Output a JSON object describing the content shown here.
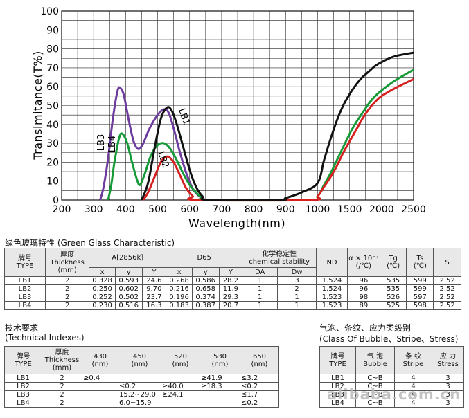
{
  "chart_data": {
    "type": "line",
    "xlabel": "Wavelength(nm)",
    "ylabel": "Transimitance(T%)",
    "xlim": [
      200,
      2500
    ],
    "ylim": [
      0,
      100
    ],
    "x_ticks": [
      "200",
      "300",
      "400",
      "500",
      "600",
      "700",
      "800",
      "900",
      "1000",
      "1500",
      "2000",
      "2500"
    ],
    "y_ticks": [
      "0",
      "10",
      "20",
      "30",
      "40",
      "50",
      "60",
      "70",
      "80",
      "90",
      "100"
    ],
    "grid": true,
    "series": [
      {
        "name": "LB1",
        "color": "#111111",
        "points": [
          [
            450,
            0
          ],
          [
            470,
            9
          ],
          [
            490,
            27
          ],
          [
            510,
            43
          ],
          [
            530,
            49
          ],
          [
            545,
            47
          ],
          [
            560,
            40
          ],
          [
            580,
            28
          ],
          [
            600,
            16
          ],
          [
            620,
            7
          ],
          [
            640,
            2
          ],
          [
            660,
            0
          ],
          [
            880,
            0
          ],
          [
            900,
            1
          ],
          [
            950,
            4
          ],
          [
            1000,
            9
          ],
          [
            1100,
            21
          ],
          [
            1200,
            32
          ],
          [
            1300,
            42
          ],
          [
            1400,
            50
          ],
          [
            1500,
            56
          ],
          [
            1600,
            61
          ],
          [
            1700,
            65
          ],
          [
            1800,
            68
          ],
          [
            1900,
            71
          ],
          [
            2000,
            73
          ],
          [
            2200,
            76
          ],
          [
            2500,
            78
          ]
        ]
      },
      {
        "name": "LB2",
        "color": "#d62020",
        "points": [
          [
            455,
            0
          ],
          [
            470,
            4
          ],
          [
            490,
            12
          ],
          [
            510,
            20
          ],
          [
            530,
            23
          ],
          [
            550,
            20
          ],
          [
            570,
            13
          ],
          [
            590,
            6
          ],
          [
            610,
            2
          ],
          [
            625,
            0
          ],
          [
            975,
            0
          ],
          [
            1000,
            2
          ],
          [
            1100,
            7
          ],
          [
            1200,
            12
          ],
          [
            1300,
            18
          ],
          [
            1400,
            25
          ],
          [
            1500,
            31
          ],
          [
            1600,
            37
          ],
          [
            1700,
            43
          ],
          [
            1800,
            48
          ],
          [
            1900,
            52
          ],
          [
            2000,
            55
          ],
          [
            2200,
            59
          ],
          [
            2500,
            64
          ]
        ]
      },
      {
        "name": "LB3",
        "color": "#6e3b9e",
        "points": [
          [
            320,
            0
          ],
          [
            330,
            6
          ],
          [
            345,
            22
          ],
          [
            360,
            43
          ],
          [
            375,
            58
          ],
          [
            385,
            59
          ],
          [
            395,
            55
          ],
          [
            410,
            42
          ],
          [
            425,
            31
          ],
          [
            440,
            27
          ],
          [
            455,
            30
          ],
          [
            475,
            38
          ],
          [
            500,
            45
          ],
          [
            520,
            48
          ],
          [
            535,
            46
          ],
          [
            550,
            38
          ],
          [
            570,
            25
          ],
          [
            590,
            14
          ],
          [
            610,
            6
          ],
          [
            630,
            2
          ],
          [
            650,
            0
          ]
        ]
      },
      {
        "name": "LB4",
        "color": "#169a38",
        "points": [
          [
            345,
            0
          ],
          [
            355,
            8
          ],
          [
            365,
            20
          ],
          [
            380,
            33
          ],
          [
            390,
            35
          ],
          [
            405,
            30
          ],
          [
            420,
            20
          ],
          [
            435,
            11
          ],
          [
            445,
            8
          ],
          [
            460,
            14
          ],
          [
            480,
            24
          ],
          [
            500,
            29
          ],
          [
            520,
            30
          ],
          [
            540,
            27
          ],
          [
            560,
            21
          ],
          [
            580,
            14
          ],
          [
            600,
            8
          ],
          [
            620,
            4
          ],
          [
            640,
            1
          ],
          [
            655,
            0
          ],
          [
            970,
            0
          ],
          [
            1000,
            2
          ],
          [
            1100,
            8
          ],
          [
            1200,
            14
          ],
          [
            1300,
            21
          ],
          [
            1400,
            28
          ],
          [
            1500,
            35
          ],
          [
            1600,
            41
          ],
          [
            1700,
            46
          ],
          [
            1800,
            51
          ],
          [
            1900,
            55
          ],
          [
            2000,
            58
          ],
          [
            2200,
            63
          ],
          [
            2500,
            69
          ]
        ]
      }
    ],
    "curve_labels": [
      "LB1",
      "LB2",
      "LB3",
      "LB4"
    ]
  },
  "table1": {
    "title": "绿色玻璃特性 (Green Glass Characteristic)",
    "header": {
      "brand": "牌号",
      "type": "TYPE",
      "thickness_cn": "厚度",
      "thickness": "Thickness",
      "thickness_unit": "(mm)",
      "a2856": "A[2856k]",
      "d65": "D65",
      "x": "x",
      "y": "y",
      "Y": "Y",
      "chem_cn": "化学稳定性",
      "chem": "chemical stability",
      "da": "DA",
      "dw": "Dw",
      "nd": "ND",
      "alpha": "α × 10⁻⁷",
      "alpha_unit": "(/℃)",
      "tg": "Tg",
      "tg_unit": "(℃)",
      "ts": "Ts",
      "ts_unit": "(℃)",
      "s": "S"
    },
    "rows": [
      [
        "LB1",
        "2",
        "0.328",
        "0.593",
        "24.6",
        "0.268",
        "0.586",
        "28.2",
        "1",
        "3",
        "1.524",
        "96",
        "535",
        "599",
        "2.52"
      ],
      [
        "LB2",
        "2",
        "0.250",
        "0.602",
        "9.70",
        "0.216",
        "0.658",
        "11.9",
        "1",
        "2",
        "1.524",
        "96",
        "535",
        "599",
        "2.52"
      ],
      [
        "LB3",
        "2",
        "0.252",
        "0.502",
        "23.7",
        "0.196",
        "0.374",
        "29.3",
        "1",
        "1",
        "1.523",
        "98",
        "526",
        "597",
        "2.52"
      ],
      [
        "LB4",
        "2",
        "0.230",
        "0.516",
        "16.3",
        "0.183",
        "0.387",
        "20.7",
        "1",
        "1",
        "1.523",
        "89",
        "525",
        "598",
        "2.52"
      ]
    ]
  },
  "table2": {
    "title_cn": "技术要求",
    "title_en": "(Technical Indexes)",
    "header": {
      "brand": "牌号",
      "type": "TYPE",
      "thickness_cn": "厚度",
      "thickness": "Thickness",
      "thickness_unit": "(mm)",
      "w430": "430",
      "w450": "450",
      "w520": "520",
      "w530": "530",
      "w650": "650",
      "nm": "(nm)"
    },
    "rows": [
      [
        "LB1",
        "2",
        "≥0.4",
        "",
        "",
        "≥41.9",
        "≤3.2"
      ],
      [
        "LB2",
        "2",
        "",
        "≤0.2",
        "≥40.0",
        "≥18.3",
        "≤0.2"
      ],
      [
        "LB3",
        "2",
        "",
        "15.2~29.0",
        "≥24.1",
        "",
        "≤1.7"
      ],
      [
        "LB4",
        "2",
        "",
        "6.0~15.9",
        "",
        "",
        "≤0.2"
      ]
    ]
  },
  "table3": {
    "title_cn": "气泡、条纹、应力类级别",
    "title_en": "(Class Of Bubble、Stripe、Stress)",
    "header": {
      "brand": "牌号",
      "type": "TYPE",
      "bubble_cn": "气 泡",
      "bubble": "Bubble",
      "stripe_cn": "条 纹",
      "stripe": "Stripe",
      "stress_cn": "应 力",
      "stress": "Stress"
    },
    "rows": [
      [
        "LB1",
        "C~B",
        "4",
        "3"
      ],
      [
        "LB2",
        "C~B",
        "4",
        "3"
      ],
      [
        "LB3",
        "C~B",
        "4",
        "3"
      ],
      [
        "LB4",
        "C~B",
        "4",
        "3"
      ]
    ]
  },
  "watermark": "alibaba.com.cn"
}
